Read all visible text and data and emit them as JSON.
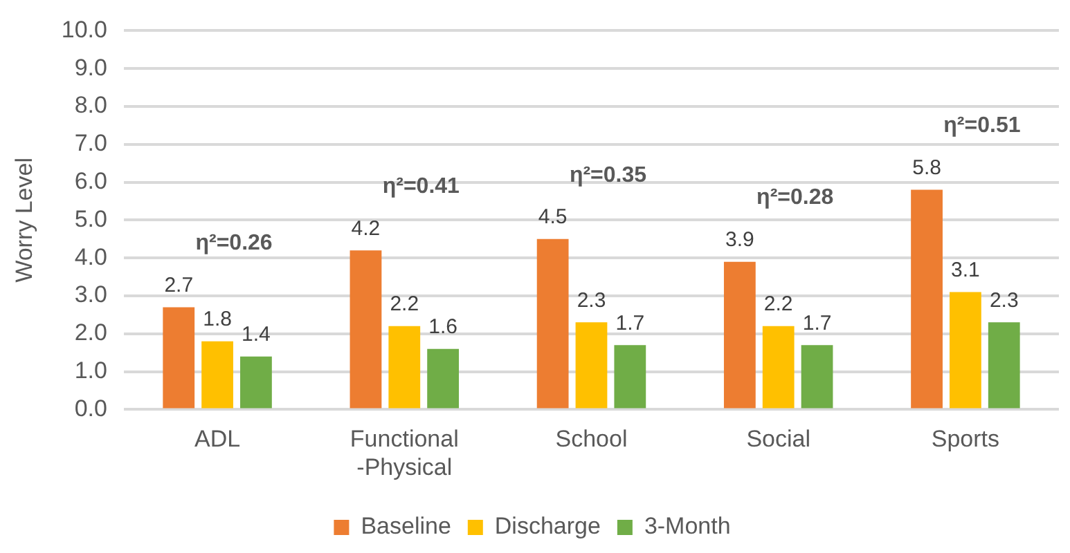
{
  "chart_data": {
    "type": "bar",
    "ylabel": "Worry Level",
    "categories": [
      "ADL",
      "Functional -Physical",
      "School",
      "Social",
      "Sports"
    ],
    "series": [
      {
        "name": "Baseline",
        "color": "#ed7d31",
        "values": [
          2.7,
          4.2,
          4.5,
          3.9,
          5.8
        ]
      },
      {
        "name": "Discharge",
        "color": "#ffc000",
        "values": [
          1.8,
          2.2,
          2.3,
          2.2,
          3.1
        ]
      },
      {
        "name": "3-Month",
        "color": "#70ad47",
        "values": [
          1.4,
          1.6,
          1.7,
          1.7,
          2.3
        ]
      }
    ],
    "ylim": [
      0,
      10
    ],
    "yticks": [
      {
        "value": 0,
        "label": "0.0"
      },
      {
        "value": 1,
        "label": "1.0"
      },
      {
        "value": 2,
        "label": "2.0"
      },
      {
        "value": 3,
        "label": "3.0"
      },
      {
        "value": 4,
        "label": "4.0"
      },
      {
        "value": 5,
        "label": "5.0"
      },
      {
        "value": 6,
        "label": "6.0"
      },
      {
        "value": 7,
        "label": "7.0"
      },
      {
        "value": 8,
        "label": "8.0"
      },
      {
        "value": 9,
        "label": "9.0"
      },
      {
        "value": 10,
        "label": "10.0"
      }
    ],
    "grid": "y",
    "legend": "bottom",
    "data_labels": true,
    "annotations": [
      "η²=0.26",
      "η²=0.41",
      "η²=0.35",
      "η²=0.28",
      "η²=0.51"
    ]
  }
}
